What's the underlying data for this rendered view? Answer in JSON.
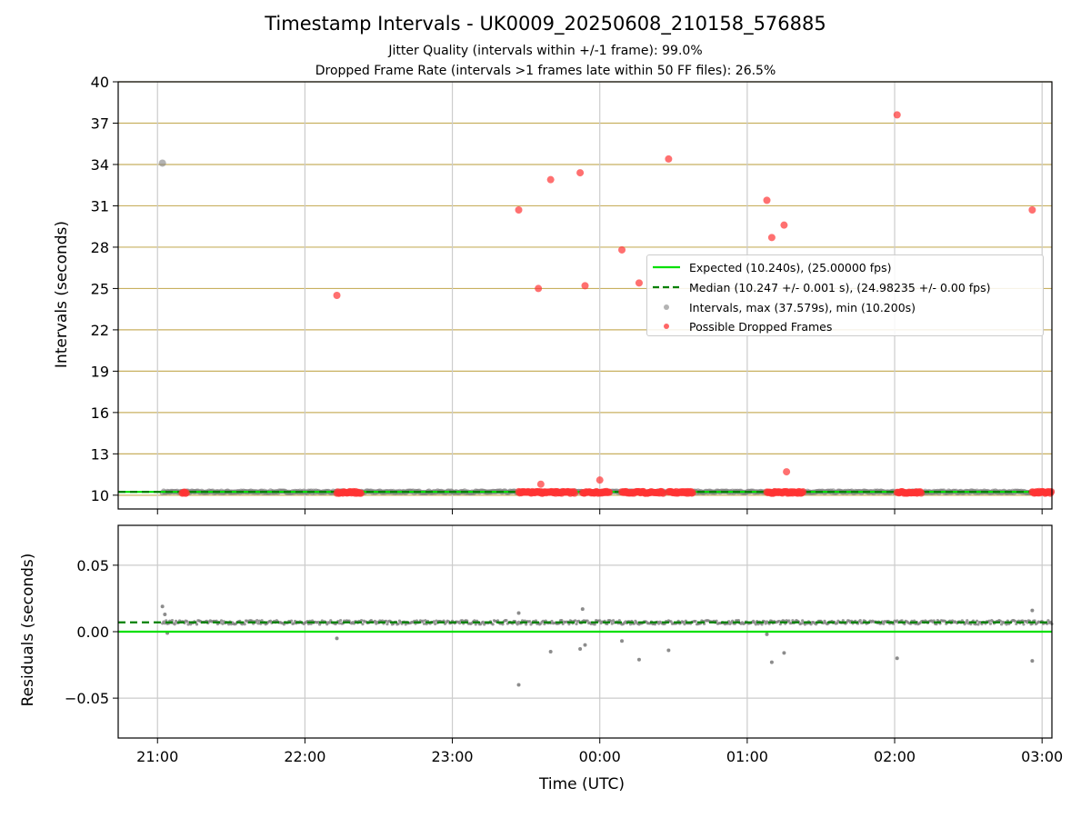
{
  "figure": {
    "title": "Timestamp Intervals - UK0009_20250608_210158_576885",
    "subtitle_jitter": "Jitter Quality (intervals within +/-1 frame): 99.0%",
    "subtitle_dropped": "Dropped Frame Rate (intervals >1 frames late within 50 FF files): 26.5%",
    "xlabel": "Time (UTC)"
  },
  "colors": {
    "expected": "#00e000",
    "median": "#008000",
    "intervals": "#808080",
    "dropped": "#ff3333",
    "hgrid_top": "#c8b060",
    "grid": "#cccccc"
  },
  "chart_data": [
    {
      "type": "scatter",
      "ylabel": "Intervals (seconds)",
      "ylim": [
        9,
        40
      ],
      "yticks": [
        10,
        13,
        16,
        19,
        22,
        25,
        28,
        31,
        34,
        37,
        40
      ],
      "xlim": [
        "20:44",
        "03:04"
      ],
      "xtick_labels": [
        "21:00",
        "22:00",
        "23:00",
        "00:00",
        "01:00",
        "02:00",
        "03:00"
      ],
      "xtick_minutes": [
        0,
        60,
        120,
        180,
        240,
        300,
        360
      ],
      "grid": true,
      "legend_position": "center-right",
      "legend": [
        {
          "label": "Expected (10.240s), (25.00000 fps)",
          "style": "solid-line"
        },
        {
          "label": "Median (10.247 +/- 0.001 s), (24.98235 +/- 0.00 fps)",
          "style": "dashed-line"
        },
        {
          "label": "Intervals, max (37.579s), min (10.200s)",
          "style": "gray-dot"
        },
        {
          "label": "Possible Dropped Frames",
          "style": "red-dot"
        }
      ],
      "expected": 10.24,
      "median": 10.247,
      "intervals_outliers": [
        {
          "t": "21:02",
          "y": 34.1
        }
      ],
      "dropped_points": [
        {
          "t": "22:13",
          "y": 24.5
        },
        {
          "t": "23:27",
          "y": 30.7
        },
        {
          "t": "23:35",
          "y": 25.0
        },
        {
          "t": "23:36",
          "y": 10.8
        },
        {
          "t": "23:40",
          "y": 32.9
        },
        {
          "t": "23:52",
          "y": 33.4
        },
        {
          "t": "23:54",
          "y": 25.2
        },
        {
          "t": "00:00",
          "y": 11.1
        },
        {
          "t": "00:09",
          "y": 27.8
        },
        {
          "t": "00:16",
          "y": 25.4
        },
        {
          "t": "00:28",
          "y": 34.4
        },
        {
          "t": "01:08",
          "y": 31.4
        },
        {
          "t": "01:10",
          "y": 28.7
        },
        {
          "t": "01:15",
          "y": 29.6
        },
        {
          "t": "01:16",
          "y": 11.7
        },
        {
          "t": "02:01",
          "y": 37.6
        },
        {
          "t": "02:56",
          "y": 30.7
        }
      ],
      "dropped_clusters": [
        {
          "start": "21:10",
          "end": "21:12",
          "y": 10.2
        },
        {
          "start": "22:13",
          "end": "22:23",
          "y": 10.2
        },
        {
          "start": "23:27",
          "end": "23:50",
          "y": 10.2
        },
        {
          "start": "23:53",
          "end": "00:04",
          "y": 10.2
        },
        {
          "start": "00:09",
          "end": "00:26",
          "y": 10.2
        },
        {
          "start": "00:28",
          "end": "00:38",
          "y": 10.2
        },
        {
          "start": "01:08",
          "end": "01:23",
          "y": 10.2
        },
        {
          "start": "02:01",
          "end": "02:11",
          "y": 10.2
        },
        {
          "start": "02:56",
          "end": "03:04",
          "y": 10.2
        }
      ]
    },
    {
      "type": "scatter",
      "ylabel": "Residuals (seconds)",
      "ylim": [
        -0.08,
        0.08
      ],
      "yticks": [
        -0.05,
        0.0,
        0.05
      ],
      "ytick_labels": [
        "−0.05",
        "0.00",
        "0.05"
      ],
      "grid": true,
      "expected": 0.0,
      "median": 0.007,
      "residual_outliers": [
        {
          "t": "21:02",
          "y": 0.019
        },
        {
          "t": "21:03",
          "y": 0.013
        },
        {
          "t": "21:04",
          "y": -0.001
        },
        {
          "t": "22:13",
          "y": -0.005
        },
        {
          "t": "23:27",
          "y": -0.04
        },
        {
          "t": "23:27",
          "y": 0.014
        },
        {
          "t": "23:40",
          "y": -0.015
        },
        {
          "t": "23:52",
          "y": -0.013
        },
        {
          "t": "23:53",
          "y": 0.017
        },
        {
          "t": "23:54",
          "y": -0.01
        },
        {
          "t": "00:09",
          "y": -0.007
        },
        {
          "t": "00:16",
          "y": -0.021
        },
        {
          "t": "00:28",
          "y": -0.014
        },
        {
          "t": "01:08",
          "y": -0.002
        },
        {
          "t": "01:10",
          "y": -0.023
        },
        {
          "t": "01:15",
          "y": -0.016
        },
        {
          "t": "02:01",
          "y": -0.02
        },
        {
          "t": "02:56",
          "y": -0.022
        },
        {
          "t": "02:56",
          "y": 0.016
        }
      ],
      "residual_band": {
        "y": 0.007,
        "start": "21:02",
        "end": "03:04"
      }
    }
  ]
}
